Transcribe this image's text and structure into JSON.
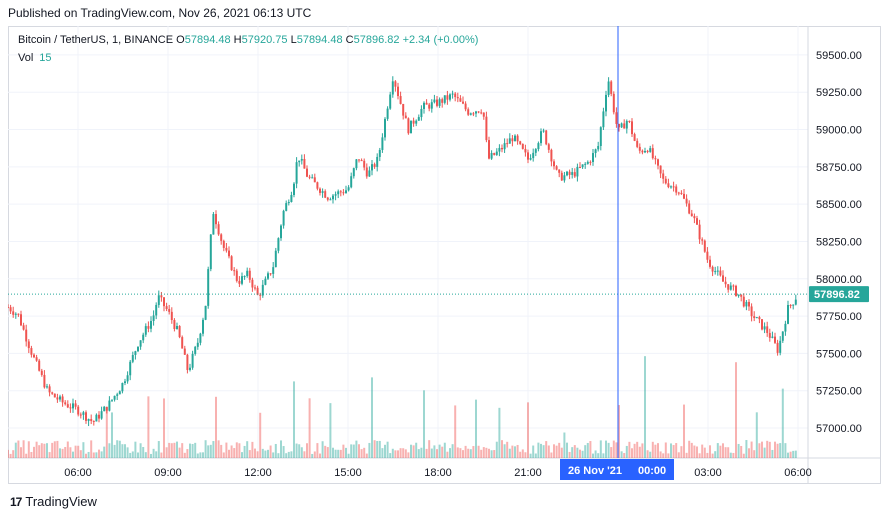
{
  "header": {
    "published": "Published on TradingView.com, Nov 26, 2021 06:13 UTC"
  },
  "legend": {
    "symbol": "Bitcoin / TetherUS, 1, BINANCE",
    "o_label": "O",
    "o_value": "57894.48",
    "h_label": "H",
    "h_value": "57920.75",
    "l_label": "L",
    "l_value": "57894.48",
    "c_label": "C",
    "c_value": "57896.82",
    "change": "+2.34 (+0.00%)",
    "vol_label": "Vol",
    "vol_value": "15"
  },
  "footer": {
    "brand_logo": "17",
    "brand": "TradingView"
  },
  "colors": {
    "up": "#26a69a",
    "down": "#ef5350",
    "crosshair": "#2962ff",
    "last_price_tag": "#26a69a",
    "grid": "#f0f3fa"
  },
  "chart_data": {
    "type": "candlestick",
    "symbol": "Bitcoin / TetherUS",
    "interval": "1",
    "exchange": "BINANCE",
    "x_tick_labels": [
      "06:00",
      "09:00",
      "12:00",
      "15:00",
      "18:00",
      "21:00",
      "00:00",
      "03:00",
      "06:00"
    ],
    "crosshair_date_label": "26 Nov '21",
    "crosshair_time_label": "00:00",
    "y_tick_labels": [
      "57000.00",
      "57250.00",
      "57500.00",
      "57750.00",
      "58000.00",
      "58250.00",
      "58500.00",
      "58750.00",
      "59000.00",
      "59250.00",
      "59500.00"
    ],
    "ylim": [
      56900,
      59600
    ],
    "last_price": "57896.82",
    "grid": true,
    "price_path": [
      {
        "t": "03:40",
        "price": 57810
      },
      {
        "t": "04:00",
        "price": 57760
      },
      {
        "t": "04:30",
        "price": 57480
      },
      {
        "t": "05:00",
        "price": 57240
      },
      {
        "t": "05:30",
        "price": 57170
      },
      {
        "t": "06:00",
        "price": 57120
      },
      {
        "t": "06:30",
        "price": 57040
      },
      {
        "t": "07:00",
        "price": 57150
      },
      {
        "t": "07:30",
        "price": 57300
      },
      {
        "t": "08:00",
        "price": 57570
      },
      {
        "t": "08:30",
        "price": 57740
      },
      {
        "t": "08:40",
        "price": 57880
      },
      {
        "t": "09:00",
        "price": 57780
      },
      {
        "t": "09:20",
        "price": 57640
      },
      {
        "t": "09:40",
        "price": 57380
      },
      {
        "t": "10:00",
        "price": 57580
      },
      {
        "t": "10:15",
        "price": 57820
      },
      {
        "t": "10:30",
        "price": 58460
      },
      {
        "t": "10:50",
        "price": 58220
      },
      {
        "t": "11:20",
        "price": 57980
      },
      {
        "t": "11:40",
        "price": 58030
      },
      {
        "t": "12:00",
        "price": 57880
      },
      {
        "t": "12:30",
        "price": 58080
      },
      {
        "t": "12:50",
        "price": 58440
      },
      {
        "t": "13:10",
        "price": 58620
      },
      {
        "t": "13:20",
        "price": 58830
      },
      {
        "t": "13:40",
        "price": 58680
      },
      {
        "t": "14:20",
        "price": 58550
      },
      {
        "t": "15:00",
        "price": 58600
      },
      {
        "t": "15:20",
        "price": 58820
      },
      {
        "t": "15:40",
        "price": 58700
      },
      {
        "t": "16:00",
        "price": 58800
      },
      {
        "t": "16:20",
        "price": 59180
      },
      {
        "t": "16:30",
        "price": 59360
      },
      {
        "t": "17:00",
        "price": 59000
      },
      {
        "t": "17:30",
        "price": 59150
      },
      {
        "t": "18:00",
        "price": 59180
      },
      {
        "t": "18:30",
        "price": 59230
      },
      {
        "t": "19:00",
        "price": 59120
      },
      {
        "t": "19:30",
        "price": 59140
      },
      {
        "t": "19:40",
        "price": 58800
      },
      {
        "t": "20:00",
        "price": 58850
      },
      {
        "t": "20:30",
        "price": 58950
      },
      {
        "t": "21:00",
        "price": 58800
      },
      {
        "t": "21:30",
        "price": 58990
      },
      {
        "t": "22:00",
        "price": 58680
      },
      {
        "t": "22:30",
        "price": 58700
      },
      {
        "t": "23:00",
        "price": 58780
      },
      {
        "t": "23:20",
        "price": 58880
      },
      {
        "t": "23:40",
        "price": 59350
      },
      {
        "t": "00:00",
        "price": 58980
      },
      {
        "t": "00:20",
        "price": 59070
      },
      {
        "t": "00:40",
        "price": 58850
      },
      {
        "t": "01:00",
        "price": 58880
      },
      {
        "t": "01:30",
        "price": 58660
      },
      {
        "t": "02:00",
        "price": 58600
      },
      {
        "t": "02:30",
        "price": 58420
      },
      {
        "t": "03:00",
        "price": 58120
      },
      {
        "t": "03:30",
        "price": 57980
      },
      {
        "t": "04:00",
        "price": 57900
      },
      {
        "t": "04:30",
        "price": 57750
      },
      {
        "t": "05:00",
        "price": 57640
      },
      {
        "t": "05:20",
        "price": 57520
      },
      {
        "t": "05:40",
        "price": 57800
      },
      {
        "t": "06:00",
        "price": 57897
      }
    ]
  }
}
